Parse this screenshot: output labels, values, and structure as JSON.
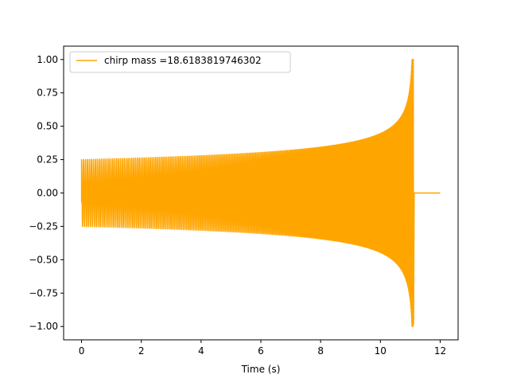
{
  "chart_data": {
    "type": "line",
    "title": "",
    "xlabel": "Time (s)",
    "ylabel": "",
    "xlim": [
      -0.6,
      12.6
    ],
    "ylim": [
      -1.1,
      1.1
    ],
    "xticks": [
      0,
      2,
      4,
      6,
      8,
      10,
      12
    ],
    "xtick_labels": [
      "0",
      "2",
      "4",
      "6",
      "8",
      "10",
      "12"
    ],
    "yticks": [
      -1.0,
      -0.75,
      -0.5,
      -0.25,
      0.0,
      0.25,
      0.5,
      0.75,
      1.0
    ],
    "ytick_labels": [
      "−1.00",
      "−0.75",
      "−0.50",
      "−0.25",
      "0.00",
      "0.25",
      "0.50",
      "0.75",
      "1.00"
    ],
    "grid": false,
    "legend_position": "top-left",
    "series": [
      {
        "name": "chirp mass =18.6183819746302",
        "color": "#ffa500",
        "signal": {
          "t_start": 0.0,
          "t_merger": 11.1,
          "t_end": 12.0,
          "start_amplitude": 0.25,
          "peak_amplitude": 1.0,
          "start_frequency_hz": 15
        }
      }
    ]
  }
}
